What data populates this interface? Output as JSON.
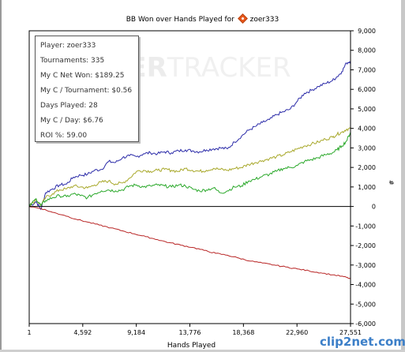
{
  "chart_data": {
    "type": "line",
    "title": "BB Won over Hands Played for",
    "player_name": "zoer333",
    "xlabel": "Hands Played",
    "ylabel": "#",
    "xlim": [
      1,
      27551
    ],
    "ylim": [
      -6000,
      9000
    ],
    "x_tick_labels": [
      "1",
      "4,592",
      "9,184",
      "13,776",
      "18,368",
      "22,960",
      "27,551"
    ],
    "x_tick_values": [
      1,
      4592,
      9184,
      13776,
      18368,
      22960,
      27551
    ],
    "y_ticks": [
      9000,
      8000,
      7000,
      6000,
      5000,
      4000,
      3000,
      2000,
      1000,
      0,
      -1000,
      -2000,
      -3000,
      -4000,
      -5000,
      -6000
    ],
    "y_tick_labels": [
      "9,000",
      "8,000",
      "7,000",
      "6,000",
      "5,000",
      "4,000",
      "3,000",
      "2,000",
      "1,000",
      "0",
      "-1,000",
      "-2,000",
      "-3,000",
      "-4,000",
      "-5,000",
      "-6,000"
    ],
    "grid": false,
    "series": [
      {
        "color": "#2a2aa8",
        "x": [
          1,
          600,
          1000,
          1400,
          2000,
          2600,
          3200,
          3800,
          4400,
          5000,
          5600,
          6200,
          6800,
          7400,
          8000,
          8600,
          9200,
          9800,
          10400,
          11000,
          11600,
          12200,
          12800,
          13400,
          14000,
          14600,
          15200,
          15800,
          16400,
          17000,
          17600,
          18200,
          18800,
          19400,
          20000,
          20600,
          21200,
          21800,
          22400,
          23000,
          23600,
          24200,
          24800,
          25400,
          26000,
          26400,
          26800,
          27200,
          27551
        ],
        "y": [
          0,
          250,
          -150,
          700,
          900,
          1100,
          1150,
          1500,
          1600,
          1650,
          1850,
          1900,
          2300,
          2250,
          2500,
          2600,
          2550,
          2700,
          2750,
          2700,
          2800,
          2750,
          2850,
          2900,
          2850,
          2800,
          2900,
          2950,
          3000,
          2950,
          3300,
          3600,
          3900,
          4100,
          4300,
          4450,
          4700,
          4850,
          5000,
          5400,
          5800,
          5950,
          6150,
          6300,
          6450,
          6650,
          6900,
          7350,
          7450
        ]
      },
      {
        "color": "#a8a82a",
        "x": [
          1,
          600,
          1000,
          1400,
          2000,
          2600,
          3200,
          3800,
          4400,
          5000,
          5600,
          6200,
          6800,
          7400,
          8000,
          8600,
          9200,
          9800,
          10400,
          11000,
          11600,
          12200,
          12800,
          13400,
          14000,
          14600,
          15200,
          15800,
          16400,
          17000,
          17600,
          18200,
          18800,
          19400,
          20000,
          20600,
          21200,
          21800,
          22400,
          23000,
          23600,
          24200,
          24800,
          25400,
          26000,
          26400,
          26800,
          27200,
          27551
        ],
        "y": [
          0,
          350,
          50,
          450,
          650,
          850,
          900,
          1050,
          1000,
          950,
          1100,
          1250,
          1300,
          1150,
          1200,
          1450,
          1800,
          1850,
          1800,
          1850,
          1900,
          1850,
          1800,
          1950,
          1850,
          1800,
          1850,
          1950,
          1900,
          1850,
          1950,
          2000,
          2150,
          2250,
          2350,
          2450,
          2550,
          2650,
          2800,
          2950,
          3100,
          3200,
          3300,
          3450,
          3550,
          3700,
          3800,
          3950,
          4000
        ]
      },
      {
        "color": "#2aa82a",
        "x": [
          1,
          600,
          1000,
          1400,
          2000,
          2600,
          3200,
          3800,
          4400,
          5000,
          5600,
          6200,
          6800,
          7400,
          8000,
          8600,
          9200,
          9800,
          10400,
          11000,
          11600,
          12200,
          12800,
          13400,
          14000,
          14600,
          15200,
          15800,
          16400,
          17000,
          17600,
          18200,
          18800,
          19400,
          20000,
          20600,
          21200,
          21800,
          22400,
          23000,
          23600,
          24200,
          24800,
          25400,
          26000,
          26400,
          26800,
          27200,
          27551
        ],
        "y": [
          0,
          400,
          50,
          300,
          450,
          550,
          500,
          650,
          550,
          450,
          650,
          800,
          850,
          800,
          850,
          1050,
          1100,
          1000,
          1050,
          1100,
          1050,
          1000,
          1100,
          1050,
          900,
          800,
          850,
          950,
          700,
          800,
          1000,
          1050,
          1300,
          1400,
          1550,
          1650,
          1800,
          1950,
          2000,
          2100,
          2300,
          2400,
          2500,
          2650,
          2750,
          2900,
          3100,
          3350,
          3800
        ]
      },
      {
        "color": "#b82424",
        "x": [
          1,
          1000,
          2000,
          3000,
          4000,
          5000,
          6000,
          7000,
          8000,
          9000,
          10000,
          11000,
          12000,
          13000,
          14000,
          15000,
          16000,
          17000,
          18000,
          19000,
          20000,
          21000,
          22000,
          23000,
          24000,
          25000,
          26000,
          27000,
          27551
        ],
        "y": [
          0,
          -100,
          -300,
          -450,
          -650,
          -800,
          -950,
          -1100,
          -1250,
          -1400,
          -1550,
          -1700,
          -1850,
          -1980,
          -2100,
          -2250,
          -2400,
          -2500,
          -2650,
          -2800,
          -2900,
          -3000,
          -3100,
          -3200,
          -3300,
          -3400,
          -3500,
          -3600,
          -3700
        ]
      }
    ]
  },
  "stats": [
    "Player: zoer333",
    "Tournaments: 335",
    "My C Net Won: $189.25",
    "My C / Tournament: $0.56",
    "Days Played: 28",
    "My C / Day: $6.76",
    "ROI %: 59.00"
  ],
  "watermark": {
    "bold": "KER",
    "light": "TRACKER"
  },
  "clip_logo": {
    "prefix": "clip",
    "num": "2",
    "suffix": "net.com"
  }
}
